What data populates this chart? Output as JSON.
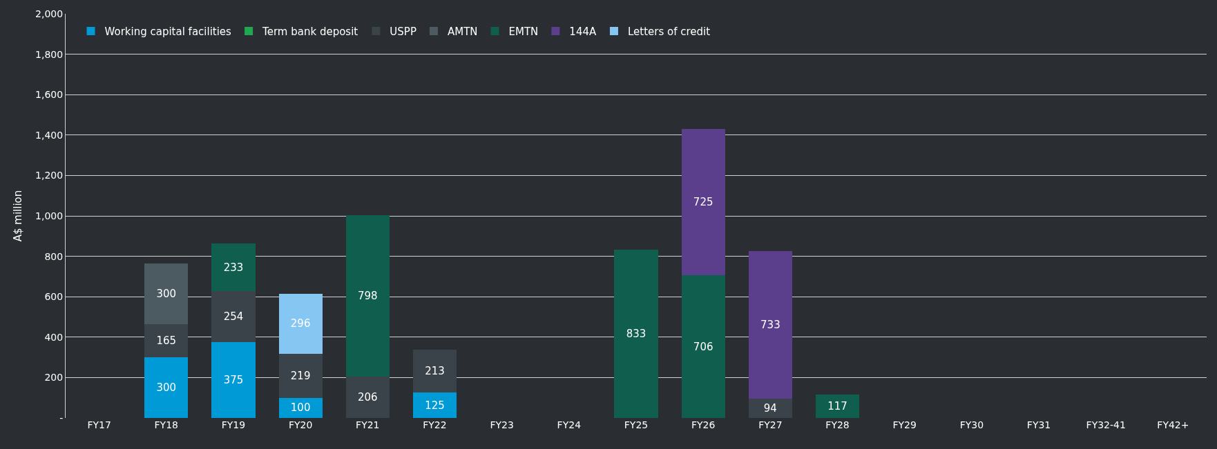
{
  "chart_data": {
    "type": "bar",
    "stacked": true,
    "ylabel": "A$ million",
    "categories": [
      "FY17",
      "FY18",
      "FY19",
      "FY20",
      "FY21",
      "FY22",
      "FY23",
      "FY24",
      "FY25",
      "FY26",
      "FY27",
      "FY28",
      "FY29",
      "FY30",
      "FY31",
      "FY32-41",
      "FY42+"
    ],
    "series": [
      {
        "name": "Working capital facilities",
        "color": "#009bd6",
        "values": [
          null,
          300,
          375,
          100,
          null,
          125,
          null,
          null,
          null,
          null,
          null,
          null,
          null,
          null,
          null,
          null,
          null
        ]
      },
      {
        "name": "Term bank deposit",
        "color": "#1fa84f",
        "values": [
          null,
          null,
          null,
          null,
          null,
          null,
          null,
          null,
          null,
          null,
          null,
          null,
          null,
          null,
          null,
          null,
          null
        ]
      },
      {
        "name": "USPP",
        "color": "#3a4349",
        "values": [
          null,
          165,
          254,
          219,
          206,
          213,
          null,
          null,
          null,
          null,
          94,
          null,
          null,
          null,
          null,
          null,
          null
        ]
      },
      {
        "name": "AMTN",
        "color": "#4c5a61",
        "values": [
          null,
          300,
          null,
          null,
          null,
          null,
          null,
          null,
          null,
          null,
          null,
          null,
          null,
          null,
          null,
          null,
          null
        ]
      },
      {
        "name": "EMTN",
        "color": "#0f5e4e",
        "values": [
          null,
          null,
          233,
          null,
          798,
          null,
          null,
          null,
          833,
          706,
          null,
          117,
          null,
          null,
          null,
          null,
          null
        ]
      },
      {
        "name": "144A",
        "color": "#5b3f8c",
        "values": [
          null,
          null,
          null,
          null,
          null,
          null,
          null,
          null,
          null,
          725,
          733,
          null,
          null,
          null,
          null,
          null,
          null
        ]
      },
      {
        "name": "Letters of credit",
        "color": "#85c6f2",
        "values": [
          null,
          null,
          null,
          296,
          null,
          null,
          null,
          null,
          null,
          null,
          null,
          null,
          null,
          null,
          null,
          null,
          null
        ]
      }
    ],
    "ylim": [
      0,
      2000
    ],
    "yticks": [
      {
        "value": 0,
        "label": "-"
      },
      {
        "value": 200,
        "label": "200"
      },
      {
        "value": 400,
        "label": "400"
      },
      {
        "value": 600,
        "label": "600"
      },
      {
        "value": 800,
        "label": "800"
      },
      {
        "value": 1000,
        "label": "1,000"
      },
      {
        "value": 1200,
        "label": "1,200"
      },
      {
        "value": 1400,
        "label": "1,400"
      },
      {
        "value": 1600,
        "label": "1,600"
      },
      {
        "value": 1800,
        "label": "1,800"
      },
      {
        "value": 2000,
        "label": "2,000"
      }
    ],
    "grid": "y",
    "legend": "top left",
    "data_labels": true
  }
}
